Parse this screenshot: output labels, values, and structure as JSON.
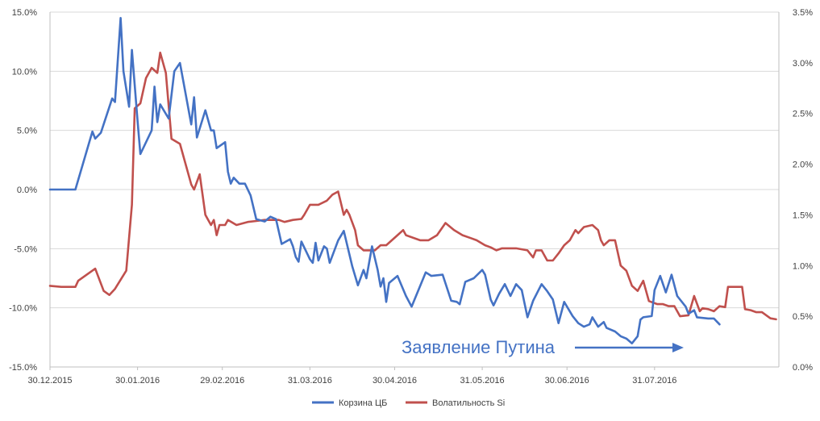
{
  "chart_data": {
    "type": "line",
    "title": "",
    "x_labels": [
      "30.12.2015",
      "30.01.2016",
      "29.02.2016",
      "31.03.2016",
      "30.04.2016",
      "31.05.2016",
      "30.06.2016",
      "31.07.2016"
    ],
    "y_left": {
      "ticks": [
        "15.0%",
        "10.0%",
        "5.0%",
        "0.0%",
        "-5.0%",
        "-10.0%",
        "-15.0%"
      ],
      "range": [
        -15,
        15
      ]
    },
    "y_right": {
      "ticks": [
        "3.5%",
        "3.0%",
        "2.5%",
        "2.0%",
        "1.5%",
        "1.0%",
        "0.5%",
        "0.0%"
      ],
      "range": [
        0,
        3.5
      ]
    },
    "grid": "horizontal",
    "legend_position": "bottom",
    "annotation": "Заявление Путина",
    "series": [
      {
        "name": "Корзина ЦБ",
        "axis": "left",
        "color": "#4472C4",
        "points": [
          [
            "2015-12-30",
            0.0
          ],
          [
            "2016-01-04",
            0.0
          ],
          [
            "2016-01-08",
            0.0
          ],
          [
            "2016-01-14",
            4.9
          ],
          [
            "2016-01-15",
            4.3
          ],
          [
            "2016-01-17",
            4.8
          ],
          [
            "2016-01-21",
            7.7
          ],
          [
            "2016-01-22",
            7.4
          ],
          [
            "2016-01-24",
            14.5
          ],
          [
            "2016-01-25",
            10.0
          ],
          [
            "2016-01-27",
            7.0
          ],
          [
            "2016-01-28",
            11.8
          ],
          [
            "2016-01-30",
            5.8
          ],
          [
            "2016-01-31",
            3.0
          ],
          [
            "2016-02-04",
            5.0
          ],
          [
            "2016-02-05",
            8.7
          ],
          [
            "2016-02-06",
            5.7
          ],
          [
            "2016-02-07",
            7.2
          ],
          [
            "2016-02-10",
            6.0
          ],
          [
            "2016-02-12",
            10.0
          ],
          [
            "2016-02-14",
            10.7
          ],
          [
            "2016-02-18",
            5.5
          ],
          [
            "2016-02-19",
            7.8
          ],
          [
            "2016-02-20",
            4.4
          ],
          [
            "2016-02-23",
            6.7
          ],
          [
            "2016-02-25",
            5.0
          ],
          [
            "2016-02-26",
            5.0
          ],
          [
            "2016-02-27",
            3.5
          ],
          [
            "2016-03-01",
            4.0
          ],
          [
            "2016-03-02",
            1.5
          ],
          [
            "2016-03-03",
            0.5
          ],
          [
            "2016-03-04",
            1.0
          ],
          [
            "2016-03-06",
            0.5
          ],
          [
            "2016-03-08",
            0.5
          ],
          [
            "2016-03-10",
            -0.5
          ],
          [
            "2016-03-12",
            -2.5
          ],
          [
            "2016-03-15",
            -2.7
          ],
          [
            "2016-03-17",
            -2.3
          ],
          [
            "2016-03-19",
            -2.5
          ],
          [
            "2016-03-21",
            -4.6
          ],
          [
            "2016-03-24",
            -4.2
          ],
          [
            "2016-03-25",
            -4.8
          ],
          [
            "2016-03-26",
            -5.7
          ],
          [
            "2016-03-27",
            -6.1
          ],
          [
            "2016-03-28",
            -4.4
          ],
          [
            "2016-03-31",
            -5.9
          ],
          [
            "2016-04-01",
            -6.2
          ],
          [
            "2016-04-02",
            -4.5
          ],
          [
            "2016-04-03",
            -6.0
          ],
          [
            "2016-04-05",
            -4.8
          ],
          [
            "2016-04-06",
            -5.0
          ],
          [
            "2016-04-07",
            -6.2
          ],
          [
            "2016-04-10",
            -4.3
          ],
          [
            "2016-04-12",
            -3.5
          ],
          [
            "2016-04-15",
            -6.5
          ],
          [
            "2016-04-17",
            -8.1
          ],
          [
            "2016-04-19",
            -6.8
          ],
          [
            "2016-04-20",
            -7.5
          ],
          [
            "2016-04-22",
            -4.8
          ],
          [
            "2016-04-24",
            -6.8
          ],
          [
            "2016-04-25",
            -8.2
          ],
          [
            "2016-04-26",
            -7.5
          ],
          [
            "2016-04-27",
            -9.5
          ],
          [
            "2016-04-28",
            -7.9
          ],
          [
            "2016-05-01",
            -7.3
          ],
          [
            "2016-05-04",
            -9.0
          ],
          [
            "2016-05-06",
            -9.9
          ],
          [
            "2016-05-11",
            -7.0
          ],
          [
            "2016-05-13",
            -7.3
          ],
          [
            "2016-05-17",
            -7.2
          ],
          [
            "2016-05-20",
            -9.4
          ],
          [
            "2016-05-22",
            -9.5
          ],
          [
            "2016-05-23",
            -9.7
          ],
          [
            "2016-05-25",
            -7.8
          ],
          [
            "2016-05-28",
            -7.5
          ],
          [
            "2016-05-31",
            -6.8
          ],
          [
            "2016-06-01",
            -7.2
          ],
          [
            "2016-06-03",
            -9.3
          ],
          [
            "2016-06-04",
            -9.8
          ],
          [
            "2016-06-06",
            -8.8
          ],
          [
            "2016-06-08",
            -8.0
          ],
          [
            "2016-06-10",
            -9.0
          ],
          [
            "2016-06-12",
            -8.0
          ],
          [
            "2016-06-14",
            -8.5
          ],
          [
            "2016-06-16",
            -10.8
          ],
          [
            "2016-06-18",
            -9.4
          ],
          [
            "2016-06-21",
            -8.0
          ],
          [
            "2016-06-23",
            -8.6
          ],
          [
            "2016-06-25",
            -9.3
          ],
          [
            "2016-06-27",
            -11.3
          ],
          [
            "2016-06-29",
            -9.5
          ],
          [
            "2016-07-02",
            -10.7
          ],
          [
            "2016-07-04",
            -11.3
          ],
          [
            "2016-07-06",
            -11.6
          ],
          [
            "2016-07-08",
            -11.4
          ],
          [
            "2016-07-09",
            -10.8
          ],
          [
            "2016-07-11",
            -11.6
          ],
          [
            "2016-07-13",
            -11.2
          ],
          [
            "2016-07-14",
            -11.7
          ],
          [
            "2016-07-17",
            -12.0
          ],
          [
            "2016-07-19",
            -12.4
          ],
          [
            "2016-07-21",
            -12.6
          ],
          [
            "2016-07-23",
            -13.0
          ],
          [
            "2016-07-25",
            -12.4
          ],
          [
            "2016-07-26",
            -11.0
          ],
          [
            "2016-07-27",
            -10.8
          ],
          [
            "2016-07-30",
            -10.7
          ],
          [
            "2016-07-31",
            -8.5
          ],
          [
            "2016-08-02",
            -7.3
          ],
          [
            "2016-08-04",
            -8.7
          ],
          [
            "2016-08-06",
            -7.2
          ],
          [
            "2016-08-08",
            -9.0
          ],
          [
            "2016-08-11",
            -9.9
          ],
          [
            "2016-08-12",
            -10.5
          ],
          [
            "2016-08-14",
            -10.2
          ],
          [
            "2016-08-15",
            -10.8
          ],
          [
            "2016-08-19",
            -10.9
          ],
          [
            "2016-08-21",
            -10.9
          ],
          [
            "2016-08-23",
            -11.4
          ]
        ]
      },
      {
        "name": "Волатильность Si",
        "axis": "right",
        "color": "#C0504D",
        "points": [
          [
            "2015-12-30",
            0.8
          ],
          [
            "2016-01-03",
            0.79
          ],
          [
            "2016-01-08",
            0.79
          ],
          [
            "2016-01-09",
            0.85
          ],
          [
            "2016-01-15",
            0.97
          ],
          [
            "2016-01-18",
            0.75
          ],
          [
            "2016-01-20",
            0.71
          ],
          [
            "2016-01-22",
            0.77
          ],
          [
            "2016-01-26",
            0.95
          ],
          [
            "2016-01-28",
            1.6
          ],
          [
            "2016-01-29",
            2.55
          ],
          [
            "2016-01-31",
            2.6
          ],
          [
            "2016-02-02",
            2.85
          ],
          [
            "2016-02-04",
            2.95
          ],
          [
            "2016-02-06",
            2.9
          ],
          [
            "2016-02-07",
            3.1
          ],
          [
            "2016-02-09",
            2.9
          ],
          [
            "2016-02-11",
            2.25
          ],
          [
            "2016-02-14",
            2.2
          ],
          [
            "2016-02-18",
            1.8
          ],
          [
            "2016-02-19",
            1.75
          ],
          [
            "2016-02-21",
            1.9
          ],
          [
            "2016-02-23",
            1.5
          ],
          [
            "2016-02-25",
            1.4
          ],
          [
            "2016-02-26",
            1.45
          ],
          [
            "2016-02-27",
            1.3
          ],
          [
            "2016-02-28",
            1.4
          ],
          [
            "2016-03-01",
            1.4
          ],
          [
            "2016-03-02",
            1.45
          ],
          [
            "2016-03-05",
            1.4
          ],
          [
            "2016-03-09",
            1.43
          ],
          [
            "2016-03-12",
            1.44
          ],
          [
            "2016-03-15",
            1.45
          ],
          [
            "2016-03-18",
            1.45
          ],
          [
            "2016-03-20",
            1.45
          ],
          [
            "2016-03-22",
            1.43
          ],
          [
            "2016-03-25",
            1.45
          ],
          [
            "2016-03-28",
            1.46
          ],
          [
            "2016-03-29",
            1.5
          ],
          [
            "2016-03-31",
            1.6
          ],
          [
            "2016-04-03",
            1.6
          ],
          [
            "2016-04-06",
            1.64
          ],
          [
            "2016-04-08",
            1.7
          ],
          [
            "2016-04-10",
            1.73
          ],
          [
            "2016-04-12",
            1.5
          ],
          [
            "2016-04-13",
            1.55
          ],
          [
            "2016-04-14",
            1.5
          ],
          [
            "2016-04-16",
            1.35
          ],
          [
            "2016-04-17",
            1.2
          ],
          [
            "2016-04-19",
            1.15
          ],
          [
            "2016-04-23",
            1.15
          ],
          [
            "2016-04-25",
            1.2
          ],
          [
            "2016-04-27",
            1.2
          ],
          [
            "2016-05-01",
            1.3
          ],
          [
            "2016-05-03",
            1.35
          ],
          [
            "2016-05-04",
            1.3
          ],
          [
            "2016-05-09",
            1.25
          ],
          [
            "2016-05-12",
            1.25
          ],
          [
            "2016-05-15",
            1.3
          ],
          [
            "2016-05-18",
            1.42
          ],
          [
            "2016-05-21",
            1.35
          ],
          [
            "2016-05-24",
            1.3
          ],
          [
            "2016-05-27",
            1.27
          ],
          [
            "2016-05-29",
            1.25
          ],
          [
            "2016-06-01",
            1.2
          ],
          [
            "2016-06-03",
            1.18
          ],
          [
            "2016-06-05",
            1.15
          ],
          [
            "2016-06-07",
            1.17
          ],
          [
            "2016-06-12",
            1.17
          ],
          [
            "2016-06-16",
            1.15
          ],
          [
            "2016-06-18",
            1.08
          ],
          [
            "2016-06-19",
            1.15
          ],
          [
            "2016-06-21",
            1.15
          ],
          [
            "2016-06-23",
            1.05
          ],
          [
            "2016-06-25",
            1.05
          ],
          [
            "2016-06-27",
            1.12
          ],
          [
            "2016-06-29",
            1.2
          ],
          [
            "2016-07-01",
            1.25
          ],
          [
            "2016-07-03",
            1.35
          ],
          [
            "2016-07-04",
            1.32
          ],
          [
            "2016-07-06",
            1.38
          ],
          [
            "2016-07-09",
            1.4
          ],
          [
            "2016-07-11",
            1.35
          ],
          [
            "2016-07-12",
            1.25
          ],
          [
            "2016-07-13",
            1.2
          ],
          [
            "2016-07-15",
            1.25
          ],
          [
            "2016-07-17",
            1.25
          ],
          [
            "2016-07-19",
            1.0
          ],
          [
            "2016-07-21",
            0.95
          ],
          [
            "2016-07-23",
            0.8
          ],
          [
            "2016-07-25",
            0.75
          ],
          [
            "2016-07-27",
            0.85
          ],
          [
            "2016-07-29",
            0.65
          ],
          [
            "2016-08-01",
            0.62
          ],
          [
            "2016-08-03",
            0.62
          ],
          [
            "2016-08-05",
            0.6
          ],
          [
            "2016-08-07",
            0.6
          ],
          [
            "2016-08-09",
            0.5
          ],
          [
            "2016-08-12",
            0.51
          ],
          [
            "2016-08-14",
            0.7
          ],
          [
            "2016-08-16",
            0.55
          ],
          [
            "2016-08-17",
            0.58
          ],
          [
            "2016-08-19",
            0.57
          ],
          [
            "2016-08-21",
            0.55
          ],
          [
            "2016-08-23",
            0.6
          ],
          [
            "2016-08-25",
            0.59
          ],
          [
            "2016-08-26",
            0.79
          ],
          [
            "2016-08-28",
            0.79
          ],
          [
            "2016-08-31",
            0.79
          ],
          [
            "2016-09-01",
            0.57
          ],
          [
            "2016-09-03",
            0.56
          ],
          [
            "2016-09-05",
            0.54
          ],
          [
            "2016-09-07",
            0.54
          ],
          [
            "2016-09-10",
            0.48
          ],
          [
            "2016-09-12",
            0.47
          ]
        ]
      }
    ]
  }
}
